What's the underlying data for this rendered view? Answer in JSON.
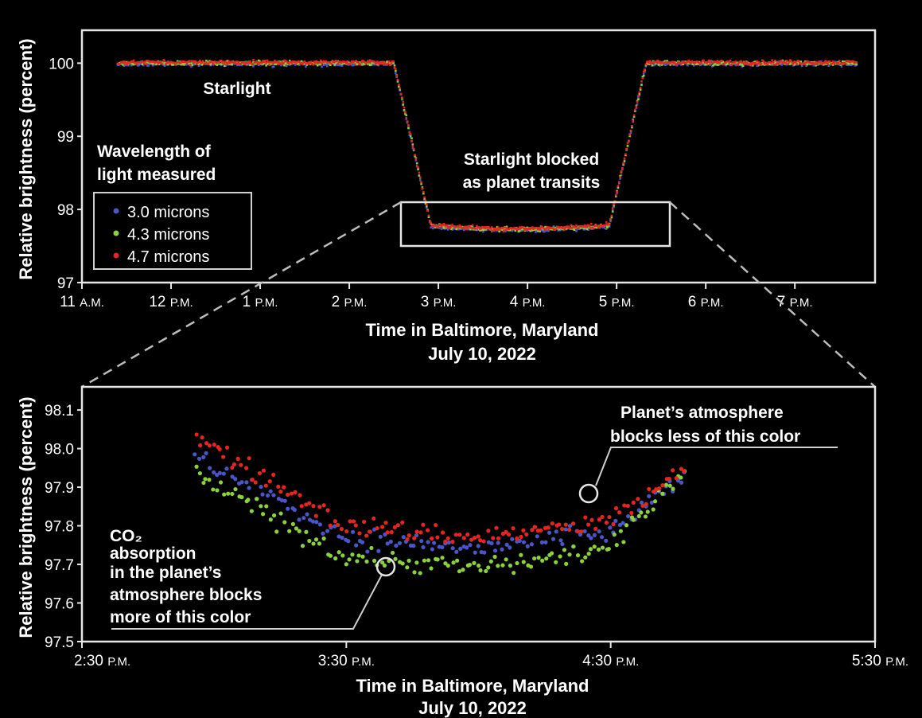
{
  "chart_data": [
    {
      "type": "scatter",
      "ylabel": "Relative brightness (percent)",
      "xlabel_line1": "Time in Baltimore, Maryland",
      "xlabel_line2": "July 10, 2022",
      "x_ticks": [
        "11 A.M.",
        "12 P.M.",
        "1 P.M.",
        "2 P.M.",
        "3 P.M.",
        "4 P.M.",
        "5 P.M.",
        "6 P.M.",
        "7 P.M."
      ],
      "y_ticks": [
        "97",
        "98",
        "99",
        "100"
      ],
      "xlim_hours": [
        11,
        19.9
      ],
      "ylim": [
        97,
        100.45
      ],
      "grid": false,
      "legend_title_line1": "Wavelength of",
      "legend_title_line2": "light measured",
      "legend_placement": "left",
      "legend": [
        {
          "label": "3.0 microns",
          "color": "#4a55c8"
        },
        {
          "label": "4.3 microns",
          "color": "#8ad13a"
        },
        {
          "label": "4.7 microns",
          "color": "#e5261f"
        }
      ],
      "annotations": {
        "starlight": "Starlight",
        "blocked_line1": "Starlight blocked",
        "blocked_line2": "as planet transits"
      },
      "light_curve": {
        "baseline": 100.0,
        "transit_depth": 97.78,
        "ingress_start": "2:30 P.M.",
        "ingress_end": "2:55 P.M.",
        "egress_start": "4:55 P.M.",
        "egress_end": "5:20 P.M.",
        "series": [
          "3.0 microns",
          "4.3 microns",
          "4.7 microns"
        ]
      }
    },
    {
      "type": "scatter",
      "ylabel": "Relative brightness (percent)",
      "xlabel_line1": "Time in Baltimore, Maryland",
      "xlabel_line2": "July 10, 2022",
      "x_ticks": [
        "2:30 P.M.",
        "3:30 P.M.",
        "4:30 P.M.",
        "5:30 P.M."
      ],
      "y_ticks": [
        "97.5",
        "97.6",
        "97.7",
        "97.8",
        "97.9",
        "98.0",
        "98.1"
      ],
      "xlim_hours": [
        14.5,
        17.5
      ],
      "ylim": [
        97.5,
        98.16
      ],
      "grid": false,
      "annotations": {
        "co2_line1": "CO₂",
        "co2_line2": "absorption",
        "co2_line3": "in the planet’s",
        "co2_line4": "atmosphere blocks",
        "co2_line5": "more of this color",
        "atm_line1": "Planet’s atmosphere",
        "atm_line2": "blocks less of this color"
      },
      "series": [
        {
          "name": "3.0 microns",
          "color": "#4a55c8",
          "trend_hours": [
            14.93,
            15.5,
            16.0,
            16.5,
            16.78
          ],
          "trend_values": [
            97.98,
            97.77,
            97.74,
            97.78,
            97.93
          ]
        },
        {
          "name": "4.3 microns",
          "color": "#8ad13a",
          "trend_hours": [
            14.93,
            15.5,
            16.0,
            16.5,
            16.78
          ],
          "trend_values": [
            97.93,
            97.72,
            97.69,
            97.74,
            97.95
          ]
        },
        {
          "name": "4.7 microns",
          "color": "#e5261f",
          "trend_hours": [
            14.93,
            15.5,
            16.0,
            16.5,
            16.78
          ],
          "trend_values": [
            98.03,
            97.8,
            97.77,
            97.81,
            97.95
          ]
        }
      ]
    }
  ]
}
